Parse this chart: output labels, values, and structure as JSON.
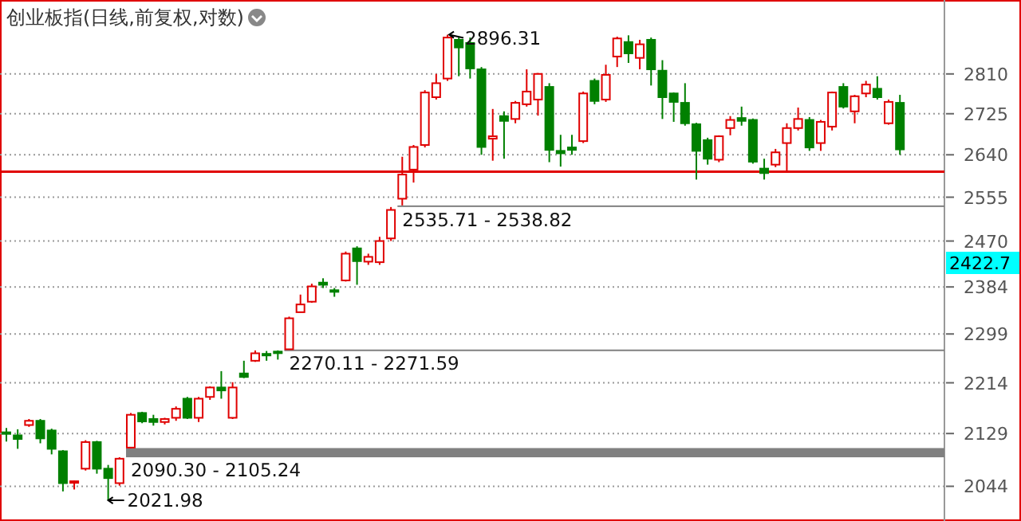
{
  "chart_data": {
    "type": "candlestick",
    "title": "创业板指(日线,前复权,对数)",
    "categories": [
      null,
      null,
      null,
      null,
      null,
      null,
      null,
      null,
      null,
      null,
      null,
      null,
      null,
      null,
      null,
      null,
      null,
      null,
      null,
      null,
      null,
      null,
      null,
      null,
      null,
      null,
      null,
      null,
      null,
      null,
      null,
      null,
      null,
      null,
      null,
      null,
      null,
      null,
      null,
      null,
      null,
      null,
      null,
      null,
      null,
      null,
      null,
      null,
      null,
      null,
      null,
      null,
      null,
      null,
      null,
      null,
      null,
      null,
      null,
      null,
      null,
      null,
      null,
      null,
      null,
      null,
      null,
      null,
      null,
      null,
      null,
      null,
      null,
      null,
      null,
      null,
      null,
      null,
      null,
      null
    ],
    "ohlc": [
      [
        2131,
        2138,
        2116,
        2129
      ],
      [
        2126,
        2136,
        2104,
        2120
      ],
      [
        2143,
        2153,
        2140,
        2150
      ],
      [
        2150,
        2153,
        2113,
        2121
      ],
      [
        2134,
        2137,
        2095,
        2104
      ],
      [
        2100,
        2102,
        2036,
        2049
      ],
      [
        2050,
        2053,
        2039,
        2052
      ],
      [
        2072,
        2118,
        2069,
        2115
      ],
      [
        2115,
        2117,
        2064,
        2072
      ],
      [
        2072,
        2078,
        2021.98,
        2057
      ],
      [
        2049,
        2090.3,
        2045,
        2088
      ],
      [
        2106,
        2163,
        2105.24,
        2160
      ],
      [
        2163,
        2165,
        2146,
        2149
      ],
      [
        2153,
        2160,
        2142,
        2148
      ],
      [
        2148,
        2155,
        2144,
        2153
      ],
      [
        2155,
        2174,
        2150,
        2170
      ],
      [
        2187,
        2190,
        2153,
        2155
      ],
      [
        2155,
        2190,
        2148,
        2187
      ],
      [
        2190,
        2208,
        2185,
        2206
      ],
      [
        2206,
        2234,
        2187,
        2201
      ],
      [
        2155,
        2215,
        2153,
        2206
      ],
      [
        2230,
        2252,
        2222,
        2224
      ],
      [
        2252,
        2270,
        2250,
        2265
      ],
      [
        2264,
        2269,
        2252,
        2262
      ],
      [
        2268,
        2270.11,
        2254,
        2266
      ],
      [
        2272,
        2330,
        2271.59,
        2327
      ],
      [
        2338,
        2370,
        2338,
        2352
      ],
      [
        2357,
        2390,
        2355,
        2385
      ],
      [
        2392,
        2400,
        2382,
        2388
      ],
      [
        2378,
        2382,
        2366,
        2375
      ],
      [
        2396,
        2450,
        2394,
        2446
      ],
      [
        2456,
        2460,
        2388,
        2432
      ],
      [
        2431,
        2446,
        2425,
        2440
      ],
      [
        2430,
        2478,
        2425,
        2470
      ],
      [
        2475,
        2535.71,
        2470,
        2530
      ],
      [
        2552,
        2636,
        2538.82,
        2600
      ],
      [
        2610,
        2660,
        2584,
        2656
      ],
      [
        2660,
        2775,
        2655,
        2770
      ],
      [
        2760,
        2810,
        2755,
        2790
      ],
      [
        2800,
        2896.31,
        2795,
        2890
      ],
      [
        2885,
        2890,
        2805,
        2868
      ],
      [
        2878,
        2890,
        2800,
        2822
      ],
      [
        2820,
        2825,
        2640,
        2656
      ],
      [
        2673,
        2735,
        2628,
        2678
      ],
      [
        2720,
        2730,
        2632,
        2710
      ],
      [
        2714,
        2752,
        2705,
        2748
      ],
      [
        2745,
        2820,
        2740,
        2772
      ],
      [
        2755,
        2812,
        2721,
        2810
      ],
      [
        2782,
        2790,
        2625,
        2650
      ],
      [
        2648,
        2681,
        2616,
        2643
      ],
      [
        2655,
        2681,
        2640,
        2650
      ],
      [
        2668,
        2772,
        2664,
        2768
      ],
      [
        2795,
        2800,
        2745,
        2752
      ],
      [
        2755,
        2830,
        2750,
        2808
      ],
      [
        2848,
        2892,
        2825,
        2888
      ],
      [
        2880,
        2895,
        2834,
        2855
      ],
      [
        2845,
        2885,
        2820,
        2875
      ],
      [
        2885,
        2890,
        2785,
        2820
      ],
      [
        2817,
        2840,
        2714,
        2760
      ],
      [
        2768,
        2770,
        2708,
        2750
      ],
      [
        2748,
        2790,
        2700,
        2705
      ],
      [
        2703,
        2706,
        2590,
        2648
      ],
      [
        2670,
        2675,
        2620,
        2632
      ],
      [
        2630,
        2680,
        2625,
        2678
      ],
      [
        2695,
        2720,
        2680,
        2712
      ],
      [
        2716,
        2740,
        2700,
        2710
      ],
      [
        2712,
        2715,
        2622,
        2626
      ],
      [
        2612,
        2632,
        2590,
        2603
      ],
      [
        2620,
        2652,
        2615,
        2645
      ],
      [
        2664,
        2705,
        2604,
        2695
      ],
      [
        2695,
        2738,
        2690,
        2714
      ],
      [
        2712,
        2718,
        2648,
        2655
      ],
      [
        2664,
        2712,
        2648,
        2708
      ],
      [
        2698,
        2772,
        2690,
        2770
      ],
      [
        2782,
        2790,
        2736,
        2740
      ],
      [
        2730,
        2765,
        2705,
        2762
      ],
      [
        2768,
        2795,
        2760,
        2787
      ],
      [
        2778,
        2805,
        2755,
        2760
      ],
      [
        2705,
        2755,
        2702,
        2750
      ],
      [
        2748,
        2765,
        2640,
        2651
      ]
    ],
    "log": true,
    "ylim": [
      1990,
      2975
    ],
    "yticks": [
      2044,
      2129,
      2214,
      2299,
      2384,
      2470,
      2555,
      2640,
      2725,
      2810
    ],
    "grid": "y",
    "tick_labels": "y",
    "ref_lines": [
      {
        "axis": "y",
        "value": 2606,
        "color": "#e00000"
      }
    ],
    "bands": [
      {
        "axis": "y",
        "from": 2090.3,
        "to": 2105.24,
        "label": "2090.30 - 2105.24",
        "color": "#808080"
      },
      {
        "axis": "y",
        "from": 2270.11,
        "to": 2271.59,
        "label": "2270.11 - 2271.59",
        "color": "#808080"
      },
      {
        "axis": "y",
        "from": 2535.71,
        "to": 2538.82,
        "label": "2535.71 - 2538.82",
        "color": "#808080"
      }
    ],
    "annotations": [
      "2896.31",
      "2021.98",
      "2422.7"
    ]
  }
}
